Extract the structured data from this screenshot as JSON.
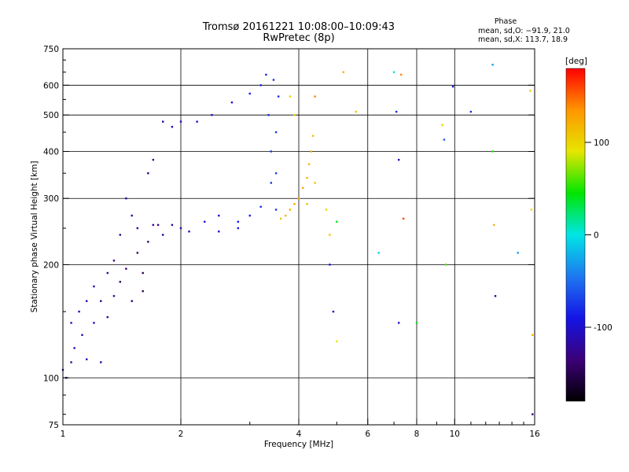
{
  "header": {
    "title": "Tromsø 20161221 10:08:00–10:09:43",
    "subtitle": "RwPretec (8p)"
  },
  "phase_info": {
    "heading": "Phase",
    "line_o": "mean, sd,O: −91.9, 21.0",
    "line_x": "mean, sd,X: 113.7, 18.9"
  },
  "chart_data": {
    "type": "scatter",
    "xlabel": "Frequency [MHz]",
    "ylabel": "Stationary phase Virtual Height [km]",
    "xscale": "log2",
    "yscale": "log",
    "xlim": [
      1,
      16
    ],
    "ylim": [
      75,
      750
    ],
    "x_ticks": [
      1,
      2,
      4,
      6,
      8,
      10,
      16
    ],
    "x_tick_labels": [
      "1",
      "2",
      "4",
      "6",
      "8",
      "10",
      "16"
    ],
    "y_ticks": [
      75,
      100,
      200,
      300,
      400,
      500,
      600,
      750
    ],
    "y_tick_labels": [
      "75",
      "100",
      "200",
      "300",
      "400",
      "500",
      "600",
      "750"
    ],
    "colorbar": {
      "label": "[deg]",
      "range": [
        -180,
        180
      ],
      "ticks": [
        100,
        0,
        -100
      ],
      "tick_labels": [
        "100",
        "0",
        "-100"
      ],
      "stops": [
        "#000000",
        "#3c0078",
        "#1414e6",
        "#1e78f0",
        "#00e6e6",
        "#00e600",
        "#e6e600",
        "#ff9600",
        "#ff0000"
      ]
    },
    "series": [
      {
        "points": [
          [
            1.0,
            105,
            -110
          ],
          [
            1.02,
            100,
            -110
          ],
          [
            1.05,
            110,
            -115
          ],
          [
            1.05,
            140,
            -105
          ],
          [
            1.07,
            120,
            -110
          ],
          [
            1.1,
            150,
            -110
          ],
          [
            1.12,
            130,
            -115
          ],
          [
            1.15,
            112,
            -110
          ],
          [
            1.15,
            160,
            -105
          ],
          [
            1.2,
            140,
            -108
          ],
          [
            1.2,
            175,
            -112
          ],
          [
            1.25,
            160,
            -120
          ],
          [
            1.25,
            110,
            -115
          ],
          [
            1.3,
            190,
            -125
          ],
          [
            1.3,
            145,
            -120
          ],
          [
            1.35,
            205,
            -130
          ],
          [
            1.35,
            165,
            -130
          ],
          [
            1.4,
            180,
            -140
          ],
          [
            1.4,
            240,
            -125
          ],
          [
            1.45,
            300,
            -120
          ],
          [
            1.45,
            195,
            -135
          ],
          [
            1.5,
            270,
            -125
          ],
          [
            1.5,
            160,
            -140
          ],
          [
            1.55,
            215,
            -140
          ],
          [
            1.55,
            250,
            -130
          ],
          [
            1.6,
            190,
            -145
          ],
          [
            1.6,
            170,
            -145
          ],
          [
            1.65,
            230,
            -140
          ],
          [
            1.65,
            350,
            -130
          ],
          [
            1.7,
            380,
            -120
          ],
          [
            1.7,
            255,
            -120
          ],
          [
            1.75,
            255,
            -125
          ],
          [
            1.8,
            240,
            -120
          ],
          [
            1.8,
            480,
            -120
          ],
          [
            1.9,
            255,
            -115
          ],
          [
            1.9,
            465,
            -110
          ],
          [
            2.0,
            250,
            -110
          ],
          [
            2.0,
            480,
            -110
          ],
          [
            2.1,
            245,
            -110
          ],
          [
            2.2,
            480,
            -105
          ],
          [
            2.3,
            260,
            -100
          ],
          [
            2.4,
            500,
            -100
          ],
          [
            2.5,
            245,
            -100
          ],
          [
            2.5,
            270,
            -95
          ],
          [
            2.7,
            540,
            -95
          ],
          [
            2.8,
            260,
            -90
          ],
          [
            2.8,
            250,
            -95
          ],
          [
            3.0,
            570,
            -85
          ],
          [
            3.0,
            270,
            -85
          ],
          [
            3.2,
            600,
            -80
          ],
          [
            3.2,
            285,
            -80
          ],
          [
            3.3,
            640,
            -80
          ],
          [
            3.35,
            500,
            -80
          ],
          [
            3.4,
            400,
            -75
          ],
          [
            3.4,
            330,
            -75
          ],
          [
            3.45,
            620,
            -80
          ],
          [
            3.5,
            450,
            -75
          ],
          [
            3.5,
            350,
            -70
          ],
          [
            3.5,
            280,
            -75
          ],
          [
            3.55,
            560,
            -80
          ]
        ]
      },
      {
        "points": [
          [
            3.6,
            265,
            110
          ],
          [
            3.7,
            270,
            115
          ],
          [
            3.8,
            280,
            120
          ],
          [
            3.9,
            290,
            125
          ],
          [
            4.0,
            300,
            120
          ],
          [
            4.1,
            320,
            125
          ],
          [
            4.2,
            340,
            115
          ],
          [
            4.25,
            370,
            120
          ],
          [
            4.3,
            400,
            125
          ],
          [
            4.35,
            440,
            110
          ],
          [
            4.4,
            330,
            110
          ],
          [
            4.2,
            290,
            115
          ],
          [
            4.4,
            560,
            140
          ],
          [
            3.8,
            560,
            100
          ],
          [
            3.9,
            500,
            100
          ]
        ]
      },
      {
        "points": [
          [
            4.7,
            280,
            100
          ],
          [
            4.8,
            240,
            110
          ],
          [
            4.8,
            200,
            -90
          ],
          [
            4.9,
            150,
            -100
          ],
          [
            5.0,
            125,
            90
          ],
          [
            5.0,
            260,
            40
          ],
          [
            5.2,
            650,
            120
          ],
          [
            5.6,
            510,
            110
          ],
          [
            6.4,
            215,
            -10
          ],
          [
            7.0,
            650,
            0
          ],
          [
            7.1,
            510,
            -80
          ],
          [
            7.2,
            140,
            -95
          ],
          [
            7.2,
            380,
            -100
          ],
          [
            7.3,
            640,
            140
          ],
          [
            7.4,
            265,
            160
          ],
          [
            8.0,
            140,
            40
          ],
          [
            9.3,
            470,
            100
          ],
          [
            9.4,
            430,
            -60
          ],
          [
            9.5,
            200,
            60
          ],
          [
            9.9,
            595,
            -90
          ],
          [
            11.0,
            510,
            -80
          ],
          [
            12.5,
            680,
            -30
          ],
          [
            12.5,
            400,
            50
          ],
          [
            12.6,
            255,
            120
          ],
          [
            12.7,
            165,
            -120
          ],
          [
            15.6,
            580,
            100
          ],
          [
            15.7,
            280,
            100
          ],
          [
            15.8,
            80,
            -130
          ],
          [
            15.8,
            130,
            120
          ],
          [
            14.5,
            215,
            -30
          ]
        ]
      }
    ]
  }
}
